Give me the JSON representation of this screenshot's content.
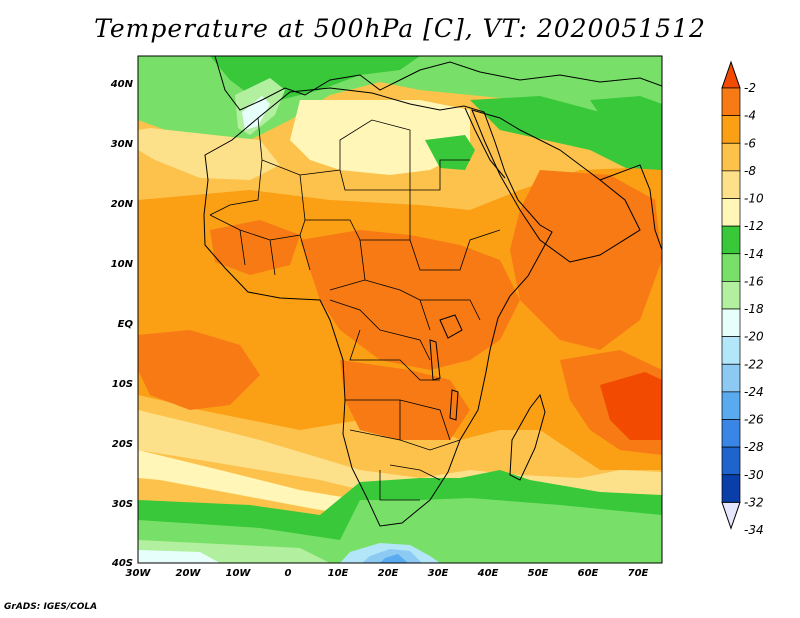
{
  "title": "Temperature at 500hPa [C], VT: 2020051512",
  "credit": "GrADS: IGES/COLA",
  "map": {
    "variable": "Temperature at 500hPa",
    "units": "C",
    "valid_time": "2020051512",
    "lon_range": [
      -30,
      75
    ],
    "lat_range": [
      -40,
      45
    ],
    "lat_ticks": [
      "40N",
      "30N",
      "20N",
      "10N",
      "EQ",
      "10S",
      "20S",
      "30S",
      "40S"
    ],
    "lon_ticks": [
      "30W",
      "20W",
      "10W",
      "0",
      "10E",
      "20E",
      "30E",
      "40E",
      "50E",
      "60E",
      "70E"
    ]
  },
  "colorbar": {
    "labels": [
      "-2",
      "-4",
      "-6",
      "-8",
      "-10",
      "-12",
      "-14",
      "-16",
      "-18",
      "-20",
      "-22",
      "-24",
      "-26",
      "-28",
      "-30",
      "-32",
      "-34"
    ],
    "colors": [
      "#f24a00",
      "#f77a14",
      "#fb9f14",
      "#fcc24b",
      "#fde08a",
      "#fff6b8",
      "#38c83a",
      "#78e068",
      "#b2f0a0",
      "#e6fffa",
      "#b4e6fa",
      "#8ccaf4",
      "#5aaaf0",
      "#3a86e6",
      "#1e64cc",
      "#0a3ea8",
      "#091678"
    ]
  }
}
